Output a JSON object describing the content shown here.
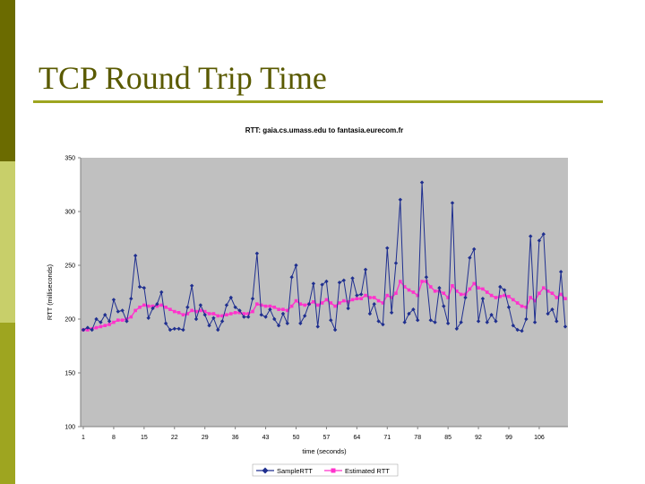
{
  "slide": {
    "title": "TCP Round Trip Time",
    "colors": {
      "sidebar_dark": "#6b6b00",
      "sidebar_light": "#c8cf6a",
      "sidebar_mid": "#9ea520",
      "title": "#5a5a00",
      "rule": "#9ea520"
    }
  },
  "chart_data": {
    "type": "line",
    "title": "RTT: gaia.cs.umass.edu to fantasia.eurecom.fr",
    "xlabel": "time (seconds)",
    "ylabel": "RTT (milliseconds)",
    "xlim": [
      1,
      112
    ],
    "ylim": [
      100,
      350
    ],
    "xticks": [
      1,
      8,
      15,
      22,
      29,
      36,
      43,
      50,
      57,
      64,
      71,
      78,
      85,
      92,
      99,
      106
    ],
    "yticks": [
      100,
      150,
      200,
      250,
      300,
      350
    ],
    "grid": false,
    "plot_background": "#c0c0c0",
    "legend_position": "bottom",
    "series": [
      {
        "name": "SampleRTT",
        "color": "#1f2f8f",
        "marker": "diamond",
        "x": [
          1,
          2,
          3,
          4,
          5,
          6,
          7,
          8,
          9,
          10,
          11,
          12,
          13,
          14,
          15,
          16,
          17,
          18,
          19,
          20,
          21,
          22,
          23,
          24,
          25,
          26,
          27,
          28,
          29,
          30,
          31,
          32,
          33,
          34,
          35,
          36,
          37,
          38,
          39,
          40,
          41,
          42,
          43,
          44,
          45,
          46,
          47,
          48,
          49,
          50,
          51,
          52,
          53,
          54,
          55,
          56,
          57,
          58,
          59,
          60,
          61,
          62,
          63,
          64,
          65,
          66,
          67,
          68,
          69,
          70,
          71,
          72,
          73,
          74,
          75,
          76,
          77,
          78,
          79,
          80,
          81,
          82,
          83,
          84,
          85,
          86,
          87,
          88,
          89,
          90,
          91,
          92,
          93,
          94,
          95,
          96,
          97,
          98,
          99,
          100,
          101,
          102,
          103,
          104,
          105,
          106,
          107,
          108,
          109,
          110,
          111,
          112
        ],
        "values": [
          190,
          192,
          190,
          200,
          197,
          204,
          198,
          218,
          207,
          208,
          198,
          219,
          259,
          230,
          229,
          201,
          210,
          214,
          225,
          196,
          190,
          191,
          191,
          190,
          211,
          231,
          200,
          213,
          204,
          194,
          201,
          190,
          198,
          213,
          220,
          211,
          208,
          202,
          202,
          219,
          261,
          204,
          202,
          209,
          200,
          194,
          205,
          196,
          239,
          250,
          196,
          203,
          214,
          233,
          193,
          232,
          235,
          199,
          190,
          234,
          236,
          210,
          238,
          222,
          223,
          246,
          205,
          214,
          198,
          195,
          266,
          206,
          252,
          311,
          197,
          205,
          209,
          199,
          327,
          239,
          199,
          197,
          229,
          212,
          196,
          308,
          191,
          197,
          220,
          257,
          265,
          198,
          219,
          197,
          204,
          198,
          230,
          227,
          211,
          194,
          190,
          189,
          200,
          277,
          197,
          273,
          279,
          205,
          209,
          198,
          244,
          193
        ]
      },
      {
        "name": "Estimated RTT",
        "color": "#ff33cc",
        "marker": "square",
        "x": [
          1,
          2,
          3,
          4,
          5,
          6,
          7,
          8,
          9,
          10,
          11,
          12,
          13,
          14,
          15,
          16,
          17,
          18,
          19,
          20,
          21,
          22,
          23,
          24,
          25,
          26,
          27,
          28,
          29,
          30,
          31,
          32,
          33,
          34,
          35,
          36,
          37,
          38,
          39,
          40,
          41,
          42,
          43,
          44,
          45,
          46,
          47,
          48,
          49,
          50,
          51,
          52,
          53,
          54,
          55,
          56,
          57,
          58,
          59,
          60,
          61,
          62,
          63,
          64,
          65,
          66,
          67,
          68,
          69,
          70,
          71,
          72,
          73,
          74,
          75,
          76,
          77,
          78,
          79,
          80,
          81,
          82,
          83,
          84,
          85,
          86,
          87,
          88,
          89,
          90,
          91,
          92,
          93,
          94,
          95,
          96,
          97,
          98,
          99,
          100,
          101,
          102,
          103,
          104,
          105,
          106,
          107,
          108,
          109,
          110,
          111,
          112
        ],
        "values": [
          190,
          190,
          191,
          192,
          193,
          194,
          195,
          197,
          199,
          199,
          200,
          202,
          208,
          211,
          213,
          212,
          212,
          212,
          213,
          211,
          209,
          207,
          206,
          204,
          205,
          208,
          207,
          208,
          207,
          205,
          205,
          203,
          203,
          204,
          205,
          206,
          206,
          205,
          205,
          207,
          214,
          213,
          212,
          212,
          211,
          209,
          209,
          208,
          212,
          217,
          214,
          213,
          214,
          216,
          213,
          215,
          218,
          215,
          212,
          215,
          217,
          216,
          218,
          219,
          219,
          222,
          220,
          220,
          217,
          215,
          222,
          220,
          224,
          235,
          230,
          227,
          225,
          222,
          235,
          235,
          230,
          226,
          226,
          224,
          220,
          231,
          226,
          223,
          223,
          228,
          233,
          229,
          228,
          225,
          222,
          220,
          221,
          222,
          221,
          218,
          215,
          212,
          211,
          220,
          217,
          224,
          229,
          226,
          224,
          220,
          223,
          219
        ]
      }
    ]
  }
}
